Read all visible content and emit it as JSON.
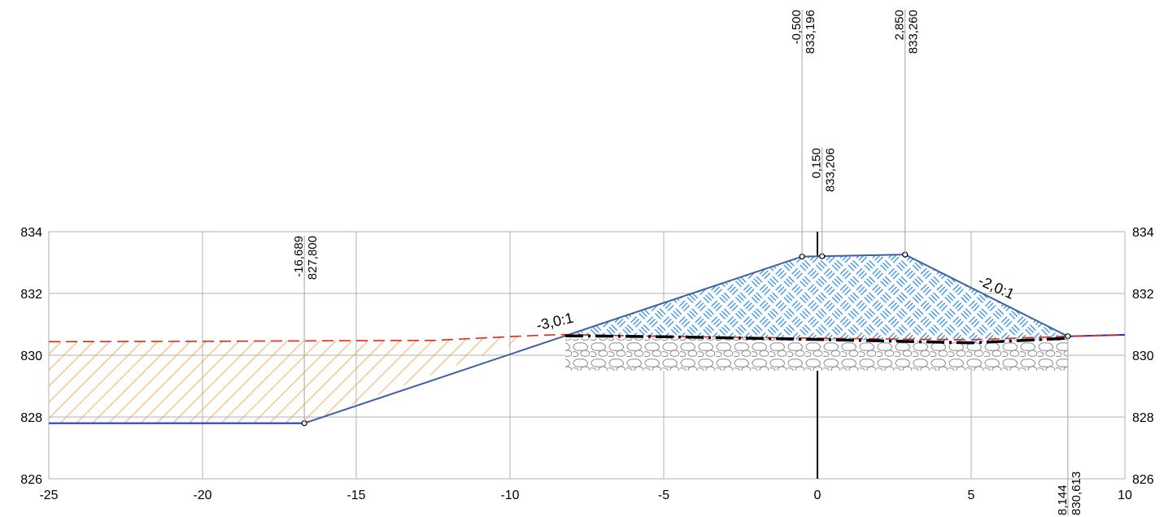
{
  "chart_data": {
    "type": "line",
    "title": "",
    "xlabel": "",
    "ylabel": "",
    "xlim": [
      -25,
      10
    ],
    "ylim": [
      826,
      834
    ],
    "grid": true,
    "x_ticks": [
      "-25",
      "-20",
      "-15",
      "-10",
      "-5",
      "0",
      "5",
      "10"
    ],
    "y_ticks": [
      "826",
      "828",
      "830",
      "832",
      "834"
    ],
    "y_ticks_right": [
      "826",
      "828",
      "830",
      "832",
      "834"
    ],
    "colors": {
      "grid": "#b0b0b0",
      "existing_ground": "#e8251b",
      "design_line": "#3e5fa0",
      "bottom_line": "#1f2cd8",
      "cut_hatch": "#f39a32",
      "fill_hatch": "#2f8de4",
      "subgrade": "#000000",
      "stone_layer": "#8c8c8c",
      "axis_zero": "#000000"
    },
    "series": [
      {
        "key": "design",
        "points": [
          [
            -25,
            827.8
          ],
          [
            -16.689,
            827.8
          ],
          [
            -8.2,
            830.63
          ],
          [
            -0.5,
            833.196
          ],
          [
            0.15,
            833.206
          ],
          [
            2.85,
            833.26
          ],
          [
            8.144,
            830.613
          ],
          [
            10,
            830.66
          ]
        ]
      },
      {
        "key": "ground",
        "points": [
          [
            -25,
            830.44
          ],
          [
            -20,
            830.45
          ],
          [
            -15,
            830.47
          ],
          [
            -12.5,
            830.48
          ],
          [
            -9.2,
            830.64
          ],
          [
            -8.2,
            830.67
          ],
          [
            -5,
            830.61
          ],
          [
            0,
            830.55
          ],
          [
            5,
            830.5
          ],
          [
            8.144,
            830.613
          ],
          [
            10,
            830.66
          ]
        ]
      },
      {
        "key": "subgrade",
        "points": [
          [
            -8.2,
            830.63
          ],
          [
            -5,
            830.6
          ],
          [
            0,
            830.51
          ],
          [
            5,
            830.4
          ],
          [
            8.144,
            830.55
          ]
        ]
      }
    ],
    "cut_area": [
      [
        -25,
        830.44
      ],
      [
        -12.5,
        830.48
      ],
      [
        -9.2,
        830.64
      ],
      [
        -16.689,
        827.8
      ],
      [
        -25,
        827.8
      ]
    ],
    "fill_area": [
      [
        -8.2,
        830.63
      ],
      [
        -0.5,
        833.196
      ],
      [
        0.15,
        833.206
      ],
      [
        2.85,
        833.26
      ],
      [
        8.144,
        830.613
      ],
      [
        5,
        830.4
      ],
      [
        0,
        830.51
      ],
      [
        -5,
        830.6
      ]
    ],
    "stone_layer": {
      "x_range": [
        -8.2,
        8.144
      ],
      "top": 830.55,
      "bottom": 829.5
    },
    "vertices": [
      [
        -16.689,
        827.8
      ],
      [
        -0.5,
        833.196
      ],
      [
        0.15,
        833.206
      ],
      [
        2.85,
        833.26
      ],
      [
        8.144,
        830.613
      ]
    ],
    "callouts": [
      {
        "x": -16.689,
        "y": 827.8,
        "offset": "-16,689",
        "elevation": "827,800"
      },
      {
        "x": -0.5,
        "y": 833.196,
        "offset": "-0,500",
        "elevation": "833,196"
      },
      {
        "x": 0.15,
        "y": 833.206,
        "offset": "0,150",
        "elevation": "833,206"
      },
      {
        "x": 2.85,
        "y": 833.26,
        "offset": "2,850",
        "elevation": "833,260"
      },
      {
        "x": 8.144,
        "y": 830.613,
        "offset": "8,144",
        "elevation": "830,613"
      }
    ],
    "slope_labels": [
      {
        "text": "-3,0:1",
        "x": -9.1,
        "y": 830.8,
        "angle": -13
      },
      {
        "text": "-2,0:1",
        "x": 5.2,
        "y": 832.3,
        "angle": 24
      }
    ]
  }
}
